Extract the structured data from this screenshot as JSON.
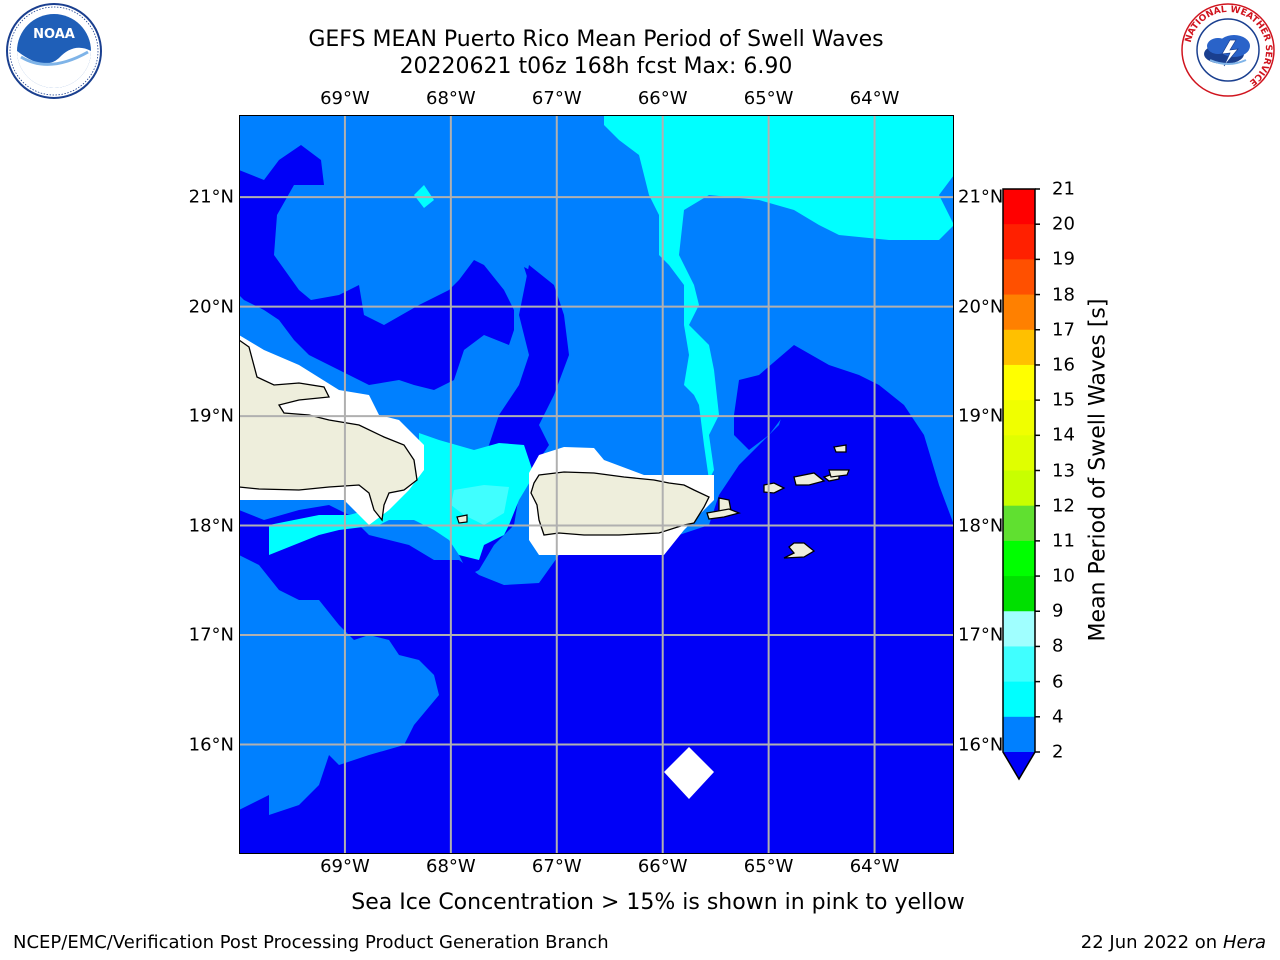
{
  "header": {
    "title_line1": "GEFS MEAN Puerto Rico Mean Period of Swell Waves",
    "title_line2": "20220621 t06z 168h fcst   Max: 6.90"
  },
  "logos": {
    "left": "noara-logo",
    "right": "national-weather-service-logo",
    "left_text": "NOAA",
    "right_ring_text": "NATIONAL WEATHER SERVICE"
  },
  "map": {
    "longitude_ticks": [
      "69°W",
      "68°W",
      "67°W",
      "66°W",
      "65°W",
      "64°W"
    ],
    "latitude_ticks": [
      "21°N",
      "20°N",
      "19°N",
      "18°N",
      "17°N",
      "16°N"
    ],
    "longitude_values": [
      -69,
      -68,
      -67,
      -66,
      -65,
      -64
    ],
    "latitude_values": [
      21,
      20,
      19,
      18,
      17,
      16
    ],
    "extent": {
      "lon_min": -70,
      "lon_max": -63.25,
      "lat_min": 15,
      "lat_max": 21.75
    },
    "colors": {
      "land": "#eeeedc",
      "level_2_4": "#0080ff",
      "level_below_2": "#0000f7",
      "level_4_6": "#00ffff",
      "level_6_8": "#40ffff",
      "masked": "#ffffff",
      "grid": "#b0b0b0"
    }
  },
  "colorbar": {
    "title": "Mean Period of Swell Waves [s]",
    "labels": [
      "21",
      "20",
      "19",
      "18",
      "17",
      "16",
      "15",
      "14",
      "13",
      "12",
      "11",
      "10",
      "9",
      "8",
      "6",
      "4",
      "2"
    ],
    "colors": [
      "#ff0000",
      "#ff2000",
      "#ff5000",
      "#ff8000",
      "#ffa000",
      "#ffc000",
      "#ffff00",
      "#f0ff00",
      "#e0ff00",
      "#c8ff00",
      "#60e030",
      "#00ff00",
      "#00e000",
      "#60ff80",
      "#a0ffff",
      "#40ffff",
      "#00ffff",
      "#0080ff"
    ],
    "under_color": "#0000f7"
  },
  "footer": {
    "note": "Sea Ice Concentration > 15% is shown in pink to yellow",
    "left": "NCEP/EMC/Verification Post Processing Product Generation Branch",
    "right_date": "22 Jun 2022 on",
    "right_host": "Hera"
  }
}
